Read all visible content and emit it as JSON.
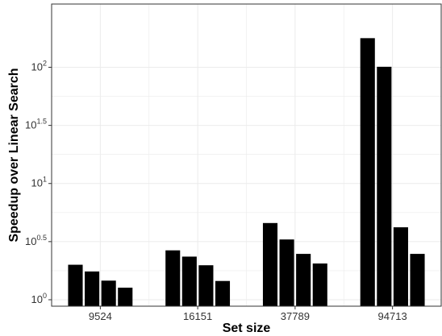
{
  "chart_data": {
    "type": "bar",
    "title": "",
    "xlabel": "Set size",
    "ylabel": "Speedup over Linear Search",
    "y_scale": "log10",
    "categories": [
      "9524",
      "16151",
      "37789",
      "94713"
    ],
    "series": [
      {
        "values": [
          2.0,
          2.66,
          4.57,
          178.0
        ]
      },
      {
        "values": [
          1.75,
          2.35,
          3.3,
          101.0
        ]
      },
      {
        "values": [
          1.46,
          1.98,
          2.48,
          4.2
        ]
      },
      {
        "values": [
          1.27,
          1.45,
          2.05,
          2.48
        ]
      }
    ],
    "y_ticks": [
      {
        "base": "10",
        "exp": "0"
      },
      {
        "base": "10",
        "exp": "0.5"
      },
      {
        "base": "10",
        "exp": "1"
      },
      {
        "base": "10",
        "exp": "1.5"
      },
      {
        "base": "10",
        "exp": "2"
      }
    ],
    "ylim": [
      0.88,
      350
    ],
    "grid": true,
    "legend": "none",
    "colors": {
      "bar": "#000000",
      "grid": "#ebebeb",
      "frame": "#333333"
    }
  }
}
